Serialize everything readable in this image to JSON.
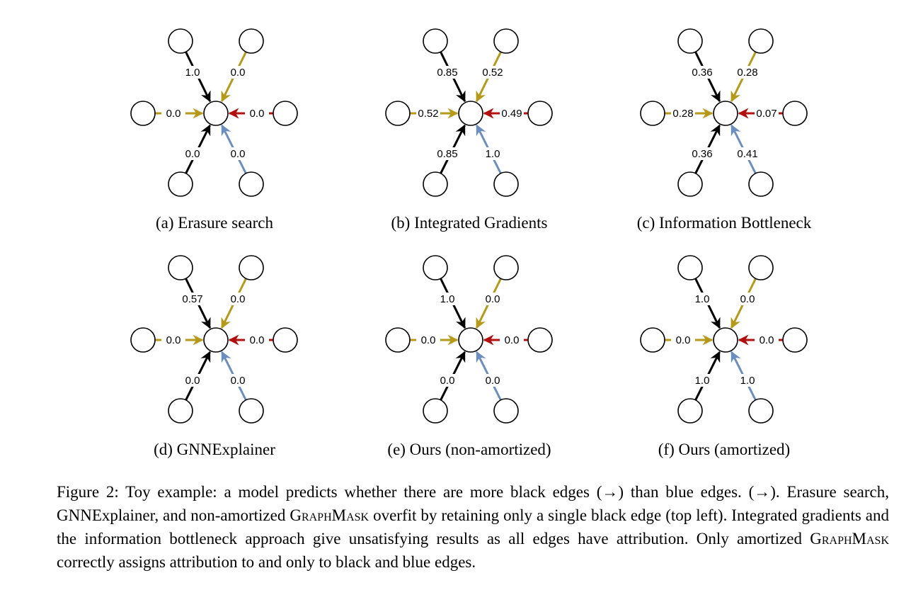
{
  "colors": {
    "black_edge": "#000000",
    "gold_edge": "#b59a1a",
    "red_edge": "#b30f0f",
    "blue_edge": "#6c8ebf"
  },
  "panels": [
    {
      "caption": "(a) Erasure search",
      "labels": {
        "top_left": "1.0",
        "top_right": "0.0",
        "left": "0.0",
        "right": "0.0",
        "bottom_left": "0.0",
        "bottom_right": "0.0"
      }
    },
    {
      "caption": "(b) Integrated Gradients",
      "labels": {
        "top_left": "0.85",
        "top_right": "0.52",
        "left": "0.52",
        "right": "0.49",
        "bottom_left": "0.85",
        "bottom_right": "1.0"
      }
    },
    {
      "caption": "(c) Information Bottleneck",
      "labels": {
        "top_left": "0.36",
        "top_right": "0.28",
        "left": "0.28",
        "right": "0.07",
        "bottom_left": "0.36",
        "bottom_right": "0.41"
      }
    },
    {
      "caption": "(d) GNNExplainer",
      "labels": {
        "top_left": "0.57",
        "top_right": "0.0",
        "left": "0.0",
        "right": "0.0",
        "bottom_left": "0.0",
        "bottom_right": "0.0"
      }
    },
    {
      "caption": "(e) Ours (non-amortized)",
      "labels": {
        "top_left": "1.0",
        "top_right": "0.0",
        "left": "0.0",
        "right": "0.0",
        "bottom_left": "0.0",
        "bottom_right": "0.0"
      }
    },
    {
      "caption": "(f) Ours (amortized)",
      "labels": {
        "top_left": "1.0",
        "top_right": "0.0",
        "left": "0.0",
        "right": "0.0",
        "bottom_left": "1.0",
        "bottom_right": "1.0"
      }
    }
  ],
  "caption": {
    "part1": "Figure 2: Toy example: a model predicts whether there are more black edges (→) than blue edges. (→). Erasure search, GNNExplainer, and non-amortized ",
    "graphmask_1": "GraphMask",
    "part2": " overfit by retaining only a single black edge (top left). Integrated gradients and the information bottleneck approach give unsatisfying results as all edges have attribution. Only amortized ",
    "graphmask_2": "GraphMask",
    "part3": " correctly assigns attribution to and only to black and blue edges."
  }
}
